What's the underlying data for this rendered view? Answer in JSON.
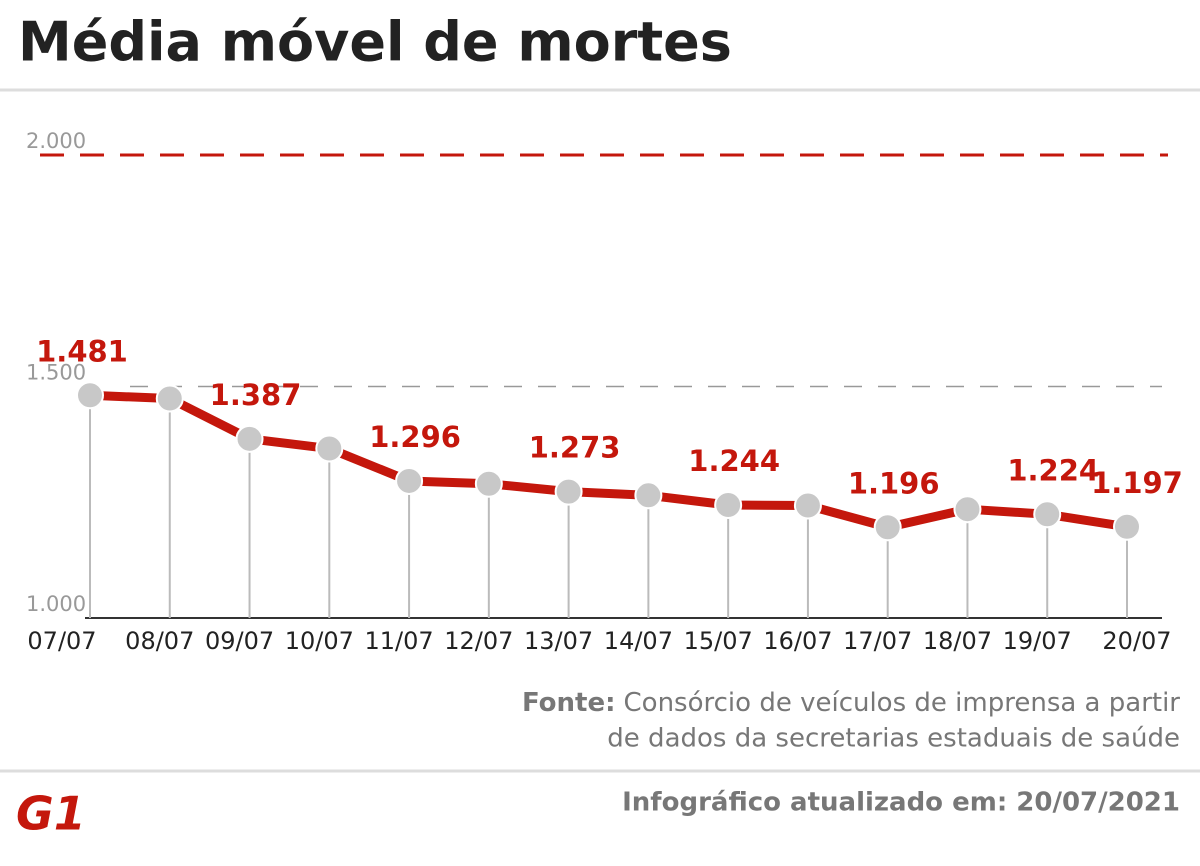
{
  "chart_data": {
    "type": "line",
    "title": "Média móvel de mortes",
    "categories": [
      "07/07",
      "08/07",
      "09/07",
      "10/07",
      "11/07",
      "12/07",
      "13/07",
      "14/07",
      "15/07",
      "16/07",
      "17/07",
      "18/07",
      "19/07",
      "20/07"
    ],
    "series": [
      {
        "name": "Média móvel de mortes",
        "color": "#c4170c",
        "values": [
          1481,
          1474,
          1387,
          1366,
          1296,
          1290,
          1273,
          1265,
          1244,
          1243,
          1196,
          1235,
          1224,
          1197
        ],
        "value_labels": [
          "1.481",
          null,
          "1.387",
          null,
          "1.296",
          null,
          "1.273",
          null,
          "1.244",
          null,
          "1.196",
          null,
          "1.224",
          "1.197"
        ]
      }
    ],
    "ylim": [
      1000,
      2000
    ],
    "yticks": [
      {
        "value": 1000,
        "label": "1.000"
      },
      {
        "value": 1500,
        "label": "1.500"
      },
      {
        "value": 2000,
        "label": "2.000"
      }
    ],
    "source_label": "Fonte:",
    "source_line1": "Consórcio de veículos de imprensa a partir",
    "source_line2": "de dados da secretarias estaduais de saúde",
    "updated": "Infográfico atualizado em: 20/07/2021",
    "logo": "G1"
  }
}
